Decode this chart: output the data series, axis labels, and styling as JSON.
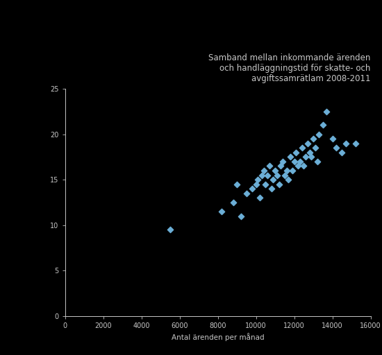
{
  "title": "Samband mellan inkommande ärenden\noch handläggningstid för skatte- och\navgiftssamrätlam 2008-2011",
  "xlabel": "Antal ärenden per månad",
  "ylabel": "",
  "xlim": [
    0,
    16000
  ],
  "ylim": [
    0,
    25
  ],
  "xticks": [
    0,
    2000,
    4000,
    6000,
    8000,
    10000,
    12000,
    14000,
    16000
  ],
  "yticks": [
    0,
    5,
    10,
    15,
    20,
    25
  ],
  "marker_color": "#6baed6",
  "background_color": "#000000",
  "text_color": "#c8c8c8",
  "title_fontsize": 8.5,
  "tick_fontsize": 7,
  "xlabel_fontsize": 7.5,
  "scatter_x": [
    5500,
    8200,
    8800,
    9000,
    9200,
    9500,
    9800,
    10000,
    10100,
    10200,
    10300,
    10400,
    10500,
    10600,
    10700,
    10800,
    10900,
    11000,
    11100,
    11200,
    11300,
    11400,
    11500,
    11600,
    11700,
    11800,
    11900,
    12000,
    12100,
    12200,
    12300,
    12400,
    12500,
    12600,
    12700,
    12800,
    12900,
    13000,
    13100,
    13200,
    13300,
    13500,
    13700,
    14000,
    14200,
    14500,
    14700,
    15200
  ],
  "scatter_y": [
    9.5,
    11.5,
    12.5,
    14.5,
    11.0,
    13.5,
    14.0,
    14.5,
    15.0,
    13.0,
    15.5,
    16.0,
    14.5,
    15.5,
    16.5,
    14.0,
    15.0,
    16.0,
    15.5,
    14.5,
    16.5,
    17.0,
    15.5,
    16.0,
    15.0,
    17.5,
    16.0,
    17.0,
    18.0,
    16.5,
    17.0,
    18.5,
    16.5,
    17.5,
    19.0,
    18.0,
    17.5,
    19.5,
    18.5,
    17.0,
    20.0,
    21.0,
    22.5,
    19.5,
    18.5,
    18.0,
    19.0,
    19.0
  ]
}
